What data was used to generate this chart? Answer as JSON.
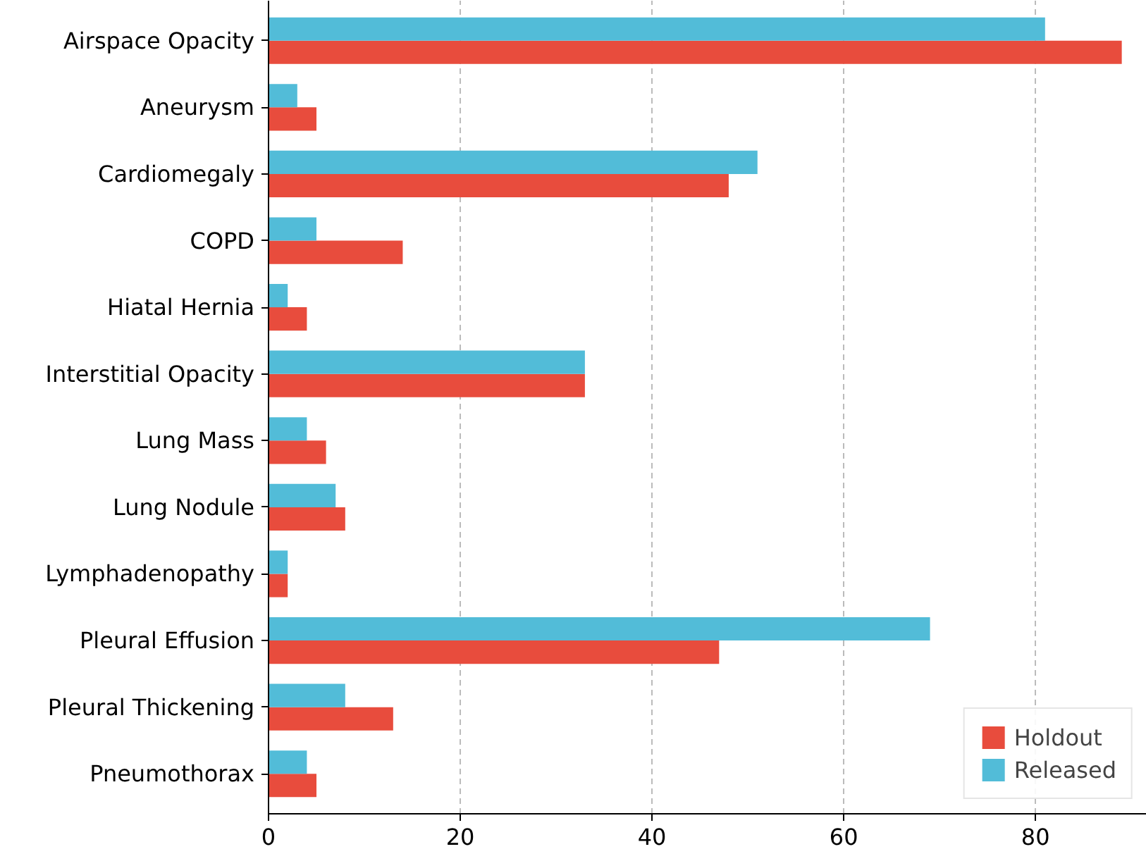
{
  "chart_data": {
    "type": "bar",
    "orientation": "horizontal",
    "categories": [
      "Airspace Opacity",
      "Aneurysm",
      "Cardiomegaly",
      "COPD",
      "Hiatal Hernia",
      "Interstitial Opacity",
      "Lung Mass",
      "Lung Nodule",
      "Lymphadenopathy",
      "Pleural Effusion",
      "Pleural Thickening",
      "Pneumothorax"
    ],
    "series": [
      {
        "name": "Holdout",
        "color": "#e84c3d",
        "values": [
          89,
          5,
          48,
          14,
          4,
          33,
          6,
          8,
          2,
          47,
          13,
          5
        ]
      },
      {
        "name": "Released",
        "color": "#52bcd8",
        "values": [
          81,
          3,
          51,
          5,
          2,
          33,
          4,
          7,
          2,
          69,
          8,
          4
        ]
      }
    ],
    "xlim": [
      0,
      91.6
    ],
    "xticks": [
      0,
      20,
      40,
      60,
      80
    ],
    "grid": "x",
    "legend": "bottom right"
  }
}
